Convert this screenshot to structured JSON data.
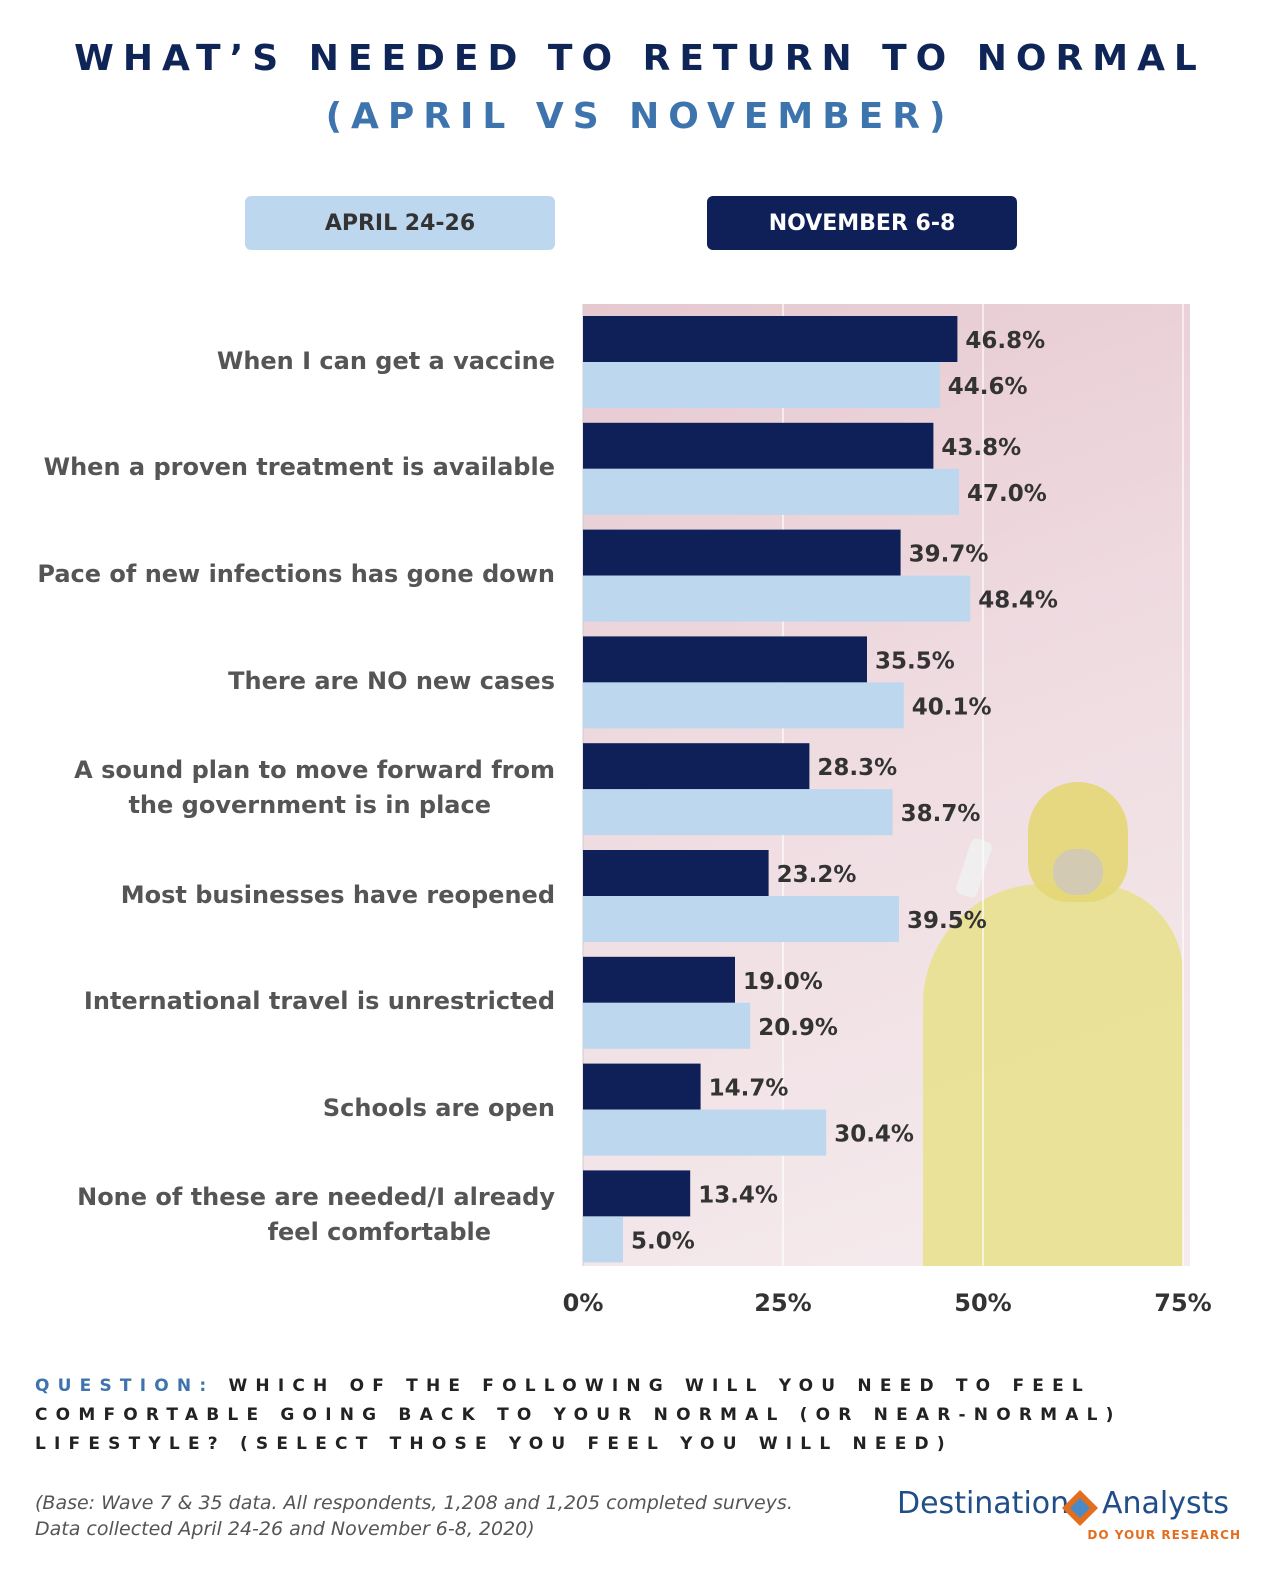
{
  "title": "WHAT’S NEEDED TO RETURN TO NORMAL",
  "subtitle": "(APRIL VS NOVEMBER)",
  "legend": {
    "april": "APRIL 24-26",
    "november": "NOVEMBER 6-8"
  },
  "colors": {
    "november": "#0f2059",
    "april": "#bdd7ee",
    "title": "#0f2557",
    "subtitle": "#3d74ad"
  },
  "chart_data": {
    "type": "bar",
    "orientation": "horizontal",
    "categories": [
      "When I can get a vaccine",
      "When a proven treatment is available",
      "Pace of new infections has gone down",
      "There are NO new cases",
      "A sound plan to move forward from\nthe government is in place",
      "Most businesses have reopened",
      "International travel is unrestricted",
      "Schools are open",
      "None of these are needed/I already\nfeel comfortable"
    ],
    "series": [
      {
        "name": "NOVEMBER 6-8",
        "values": [
          46.8,
          43.8,
          39.7,
          35.5,
          28.3,
          23.2,
          19.0,
          14.7,
          13.4
        ],
        "labels": [
          "46.8%",
          "43.8%",
          "39.7%",
          "35.5%",
          "28.3%",
          "23.2%",
          "19.0%",
          "14.7%",
          "13.4%"
        ]
      },
      {
        "name": "APRIL 24-26",
        "values": [
          44.6,
          47.0,
          48.4,
          40.1,
          38.7,
          39.5,
          20.9,
          30.4,
          5.0
        ],
        "labels": [
          "44.6%",
          "47.0%",
          "48.4%",
          "40.1%",
          "38.7%",
          "39.5%",
          "20.9%",
          "30.4%",
          "5.0%"
        ]
      }
    ],
    "xlim": [
      0,
      75
    ],
    "xticks": [
      0,
      25,
      50,
      75
    ],
    "xtick_labels": [
      "0%",
      "25%",
      "50%",
      "75%"
    ],
    "grid": true,
    "legend_position": "top"
  },
  "question": {
    "prefix": "QUESTION:",
    "text": "WHICH OF THE FOLLOWING WILL YOU NEED TO FEEL COMFORTABLE GOING BACK TO YOUR NORMAL (OR NEAR-NORMAL) LIFESTYLE? (SELECT THOSE YOU FEEL YOU WILL NEED)"
  },
  "footnote": {
    "line1": "(Base: Wave 7 & 35 data. All respondents, 1,208 and 1,205 completed surveys.",
    "line2": "Data collected April 24-26 and November 6-8, 2020)"
  },
  "logo": {
    "left": "Destination",
    "right": "Analysts",
    "tagline": "DO YOUR RESEARCH"
  }
}
